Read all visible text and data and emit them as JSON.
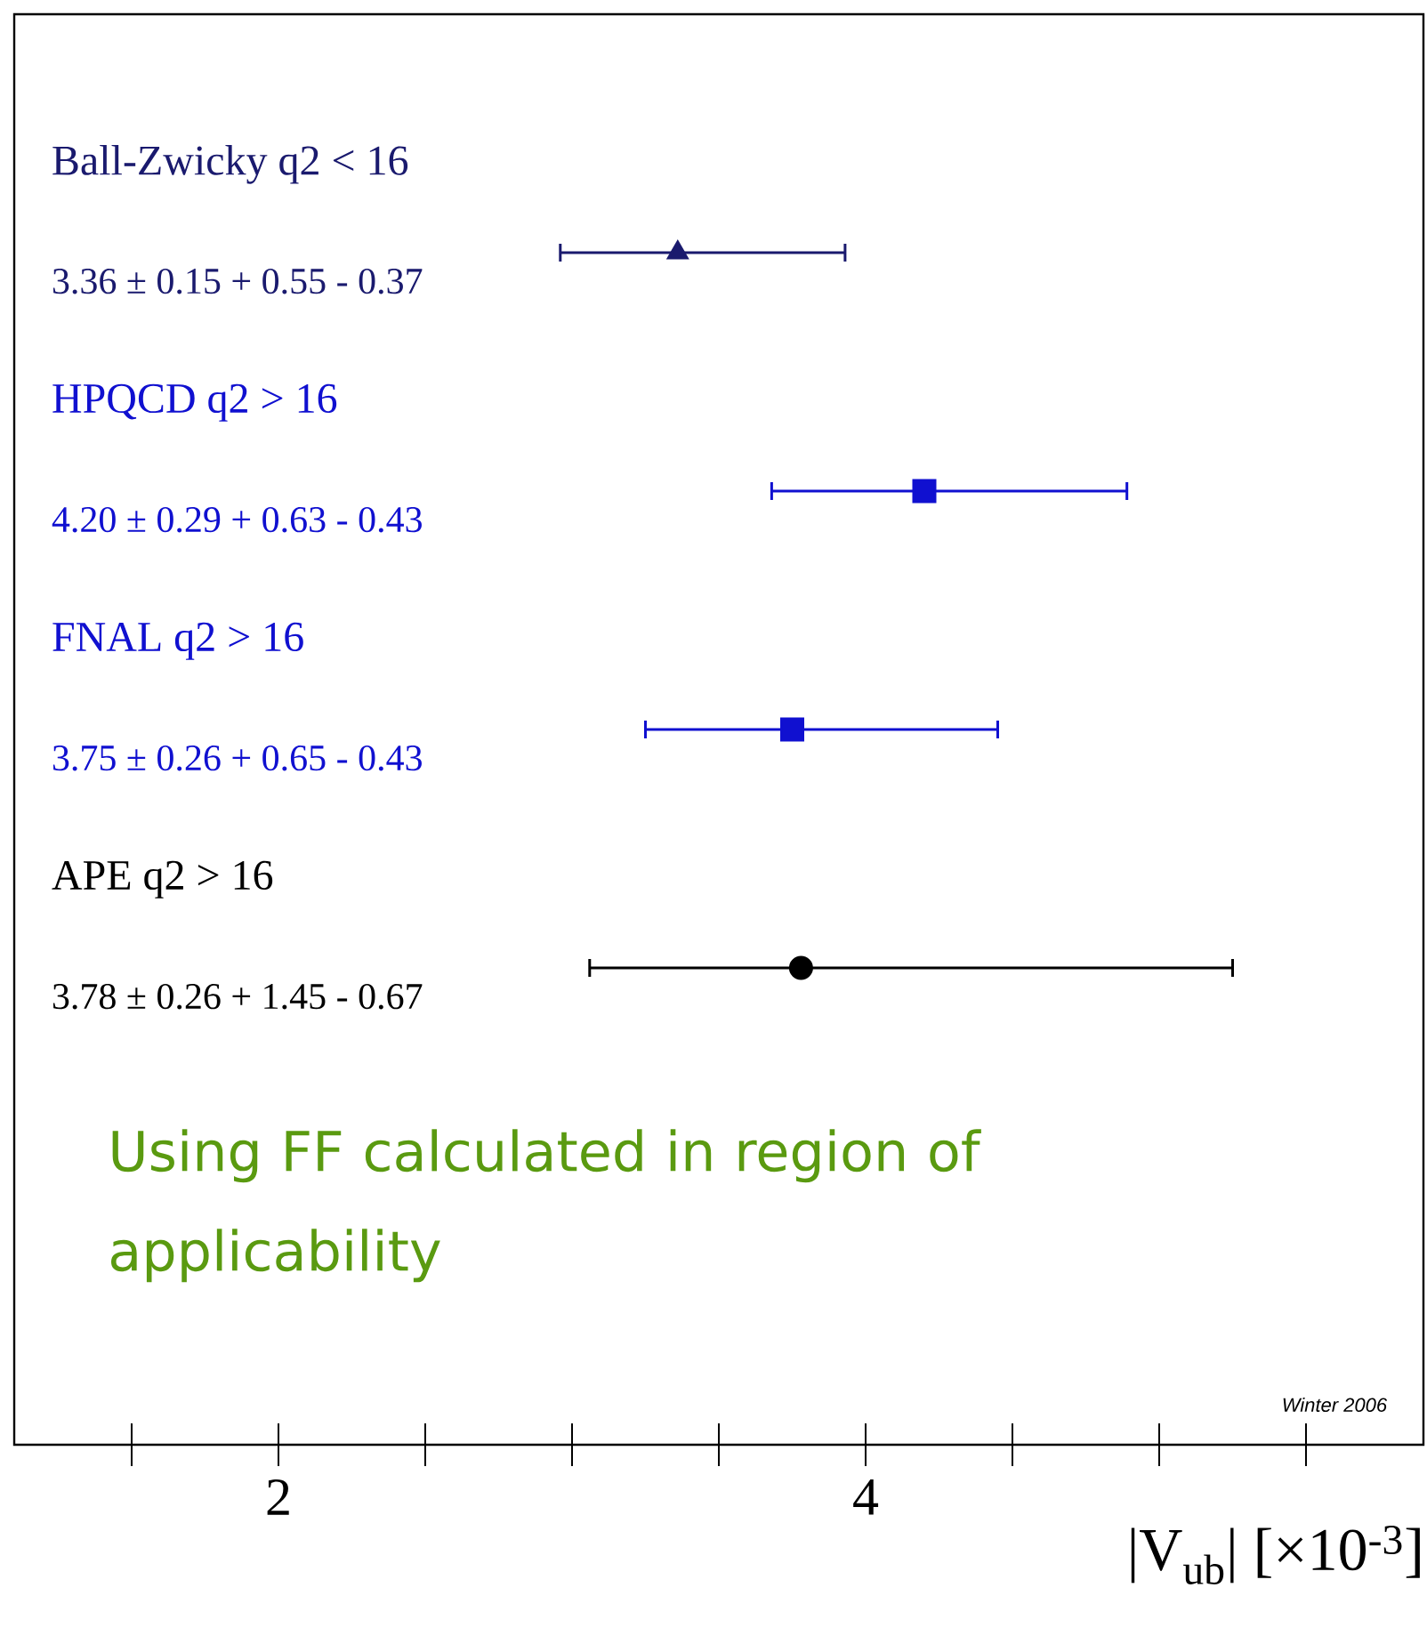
{
  "chart_data": {
    "type": "scatter",
    "orientation": "horizontal",
    "categories": [
      "Ball-Zwicky q2 < 16",
      "HPQCD q2 > 16",
      "FNAL q2 > 16",
      "APE q2 > 16"
    ],
    "value_labels": [
      "3.36 ± 0.15 + 0.55 - 0.37",
      "4.20 ± 0.29 + 0.63 - 0.43",
      "3.75 ± 0.26 + 0.65 - 0.43",
      "3.78 ± 0.26 + 1.45 - 0.67"
    ],
    "xlabel": "|V$_{ub}$|  [×10$^{-3}$]",
    "xlim": [
      1.1,
      5.9
    ],
    "xticks": [
      2,
      4
    ],
    "tick_labels": "x",
    "series": [
      {
        "color": "#1a1a6e",
        "marker": "triangle",
        "values": [
          3.36,
          null,
          null,
          null
        ],
        "errors": [
          [
            2.96,
            3.93
          ],
          null,
          null,
          null
        ]
      },
      {
        "color": "#1010d0",
        "marker": "square",
        "values": [
          null,
          4.2,
          null,
          null
        ],
        "errors": [
          null,
          [
            3.68,
            4.89
          ],
          null,
          null
        ]
      },
      {
        "color": "#1010d0",
        "marker": "square",
        "values": [
          null,
          null,
          3.75,
          null
        ],
        "errors": [
          null,
          null,
          [
            3.25,
            4.45
          ],
          null
        ]
      },
      {
        "color": "#000000",
        "marker": "circle",
        "values": [
          null,
          null,
          null,
          3.78
        ],
        "errors": [
          null,
          null,
          null,
          [
            3.06,
            5.25
          ]
        ]
      }
    ],
    "annotations": [
      "Using FF calculated  in region of applicability",
      "Winter 2006"
    ]
  }
}
